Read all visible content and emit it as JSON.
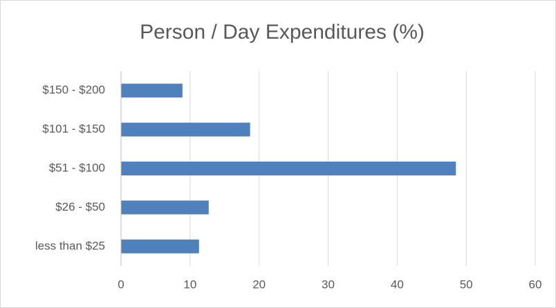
{
  "chart_data": {
    "type": "bar",
    "orientation": "horizontal",
    "title": "Person / Day Expenditures (%)",
    "categories": [
      "$150 - $200",
      "$101 - $150",
      "$51 - $100",
      "$26 - $50",
      "less than $25"
    ],
    "values": [
      8.9,
      18.7,
      48.5,
      12.7,
      11.3
    ],
    "color": "#4f81bd",
    "xlim": [
      0,
      60
    ],
    "xticks": [
      0,
      10,
      20,
      30,
      40,
      50,
      60
    ],
    "grid": true
  }
}
